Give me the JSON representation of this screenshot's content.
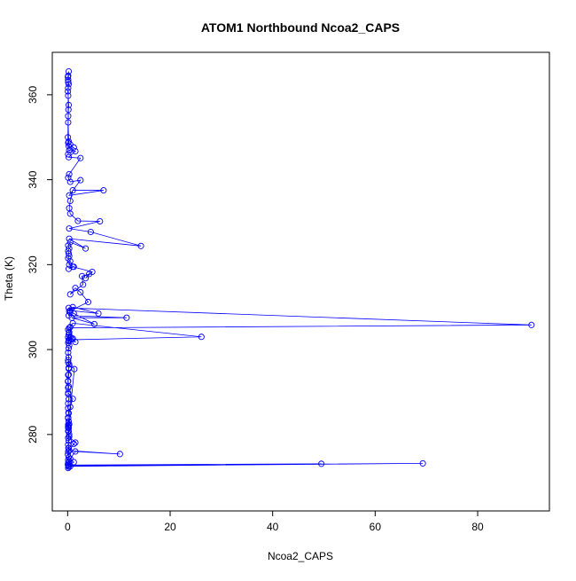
{
  "chart_data": {
    "type": "scatter",
    "title": "ATOM1 Northbound Ncoa2_CAPS",
    "xlabel": "Ncoa2_CAPS",
    "ylabel": "Theta (K)",
    "xlim": [
      -3,
      94
    ],
    "ylim": [
      262,
      370
    ],
    "xticks": [
      0,
      20,
      40,
      60,
      80
    ],
    "yticks": [
      280,
      300,
      320,
      340,
      360
    ],
    "grid": false,
    "legend": "none",
    "color": "#0000ff",
    "marker": "open-circle",
    "connected": true,
    "series": [
      {
        "x": [
          0.1,
          0.2,
          0.05,
          0.1,
          0.3,
          0.1,
          0.2,
          0.05,
          0.1,
          0.15,
          0.1,
          0.2,
          0.1,
          0.3,
          0.2,
          0.1,
          0.1,
          0.2,
          0.1,
          0.15,
          0.1,
          0.1,
          0.2,
          0.1,
          0.1,
          0.05,
          0.1,
          0.2,
          0.3,
          0.1,
          1.3,
          0.2,
          0.1,
          0.2,
          0.1,
          49.5,
          0.5,
          69.3,
          0.2,
          1.2,
          0.5,
          1.5,
          10.2,
          0.3,
          1.2,
          1.5,
          0.3,
          0.1,
          0.2,
          0.3,
          0.1,
          0.2,
          0.5,
          1.0,
          0.1,
          0.2,
          0.1,
          0.2,
          0.2,
          0.1,
          0.2,
          0.1,
          0.2,
          0.3,
          0.1,
          0.2,
          0.1,
          0.2,
          0.3,
          0.1,
          0.5,
          0.8,
          1.5,
          0.2,
          0.5,
          0.3,
          0.2,
          1.0,
          0.5,
          26.1,
          1.0,
          0.3,
          90.5,
          0.2,
          0.5,
          1.2,
          5.2,
          0.8,
          11.5,
          0.2,
          0.5,
          6.0,
          1.0,
          0.3,
          4.0,
          2.5,
          1.5,
          0.5,
          3.0,
          2.8,
          4.2,
          3.5,
          4.8,
          1.0,
          0.2,
          1.2,
          0.3,
          0.5,
          0.1,
          0.3,
          0.2,
          0.1,
          0.3,
          0.1,
          0.5,
          3.5,
          0.3,
          14.3,
          4.5,
          0.3,
          6.3,
          2.0,
          0.5,
          0.3,
          0.5,
          1.0,
          7.0,
          0.3,
          2.5,
          0.5,
          0.1,
          0.3,
          2.5,
          0.2,
          1.5,
          0.3,
          1.2,
          0.2,
          0.5,
          0.1,
          0.2,
          0.1,
          0.15,
          0.2,
          0.1,
          0.05,
          0.1,
          0.2,
          0.1,
          0.05,
          0.1,
          0.2,
          0.1,
          0.1,
          0.05,
          0.1
        ],
        "y": [
          272.1,
          272.4,
          272.9,
          273.3,
          273.6,
          274.0,
          274.6,
          275.3,
          276.0,
          276.8,
          277.6,
          278.5,
          279.2,
          280.0,
          280.8,
          281.6,
          282.3,
          283.1,
          284.0,
          285.1,
          286.2,
          287.3,
          288.3,
          289.5,
          291.0,
          292.5,
          294.0,
          295.5,
          296.5,
          297.5,
          295.4,
          282.1,
          281.8,
          276.8,
          272.8,
          273.1,
          272.5,
          273.2,
          272.6,
          273.5,
          274.3,
          276.0,
          275.4,
          276.2,
          277.8,
          278.1,
          279.5,
          280.8,
          281.5,
          282.4,
          283.8,
          285.0,
          286.5,
          288.4,
          289.8,
          291.3,
          292.6,
          294.1,
          295.7,
          297.0,
          298.2,
          299.3,
          300.3,
          301.0,
          301.6,
          302.2,
          302.9,
          303.5,
          304.1,
          304.7,
          305.3,
          302.5,
          301.8,
          302.0,
          303.0,
          304.0,
          302.2,
          302.6,
          302.3,
          303.0,
          306.2,
          305.1,
          305.8,
          309.8,
          308.8,
          308.5,
          306.0,
          307.5,
          307.5,
          308.0,
          309.2,
          308.5,
          310.0,
          309.0,
          311.2,
          313.5,
          314.5,
          313.0,
          315.3,
          317.3,
          317.8,
          316.8,
          318.3,
          319.5,
          319.0,
          319.5,
          320.0,
          320.8,
          321.5,
          322.0,
          322.6,
          323.2,
          323.8,
          324.5,
          325.3,
          323.8,
          326.1,
          324.4,
          327.7,
          328.5,
          330.2,
          330.3,
          332.0,
          333.3,
          335.0,
          337.5,
          337.5,
          336.3,
          339.9,
          339.5,
          340.5,
          341.3,
          345.1,
          345.3,
          346.7,
          346.9,
          347.6,
          347.9,
          348.3,
          348.7,
          349.0,
          353.5,
          356.5,
          357.6,
          359.8,
          360.8,
          361.6,
          362.5,
          363.5,
          364.2,
          364.5,
          365.5,
          363.0,
          355.0,
          350.0,
          346.0
        ]
      }
    ]
  }
}
